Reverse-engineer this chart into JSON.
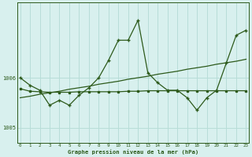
{
  "x": [
    0,
    1,
    2,
    3,
    4,
    5,
    6,
    7,
    8,
    9,
    10,
    11,
    12,
    13,
    14,
    15,
    16,
    17,
    18,
    19,
    20,
    21,
    22,
    23
  ],
  "y_jagged": [
    1006.0,
    1005.85,
    1005.75,
    1005.45,
    1005.55,
    1005.45,
    1005.65,
    1005.8,
    1006.0,
    1006.35,
    1006.75,
    1006.75,
    1007.15,
    1006.1,
    1005.9,
    1005.75,
    1005.75,
    1005.6,
    1005.35,
    1005.6,
    1005.75,
    1006.3,
    1006.85,
    1006.95
  ],
  "y_flat": [
    1005.78,
    1005.73,
    1005.72,
    1005.71,
    1005.71,
    1005.71,
    1005.72,
    1005.72,
    1005.72,
    1005.72,
    1005.72,
    1005.73,
    1005.73,
    1005.74,
    1005.74,
    1005.74,
    1005.74,
    1005.74,
    1005.74,
    1005.74,
    1005.74,
    1005.74,
    1005.74,
    1005.74
  ],
  "y_trend": [
    1005.6,
    1005.63,
    1005.67,
    1005.7,
    1005.73,
    1005.77,
    1005.8,
    1005.83,
    1005.87,
    1005.9,
    1005.93,
    1005.97,
    1006.0,
    1006.03,
    1006.07,
    1006.1,
    1006.13,
    1006.17,
    1006.2,
    1006.23,
    1006.27,
    1006.3,
    1006.33,
    1006.37
  ],
  "line_color": "#2d5a1b",
  "bg_color": "#d8f0ee",
  "grid_color": "#b8ddd8",
  "xlabel_text": "Graphe pression niveau de la mer (hPa)",
  "xticks": [
    0,
    1,
    2,
    3,
    4,
    5,
    6,
    7,
    8,
    9,
    10,
    11,
    12,
    13,
    14,
    15,
    16,
    17,
    18,
    19,
    20,
    21,
    22,
    23
  ],
  "ytick_vals": [
    1005.0,
    1006.0
  ],
  "ytick_labels": [
    "1005",
    "1006"
  ],
  "ylim": [
    1004.7,
    1007.5
  ],
  "xlim": [
    -0.3,
    23.3
  ]
}
